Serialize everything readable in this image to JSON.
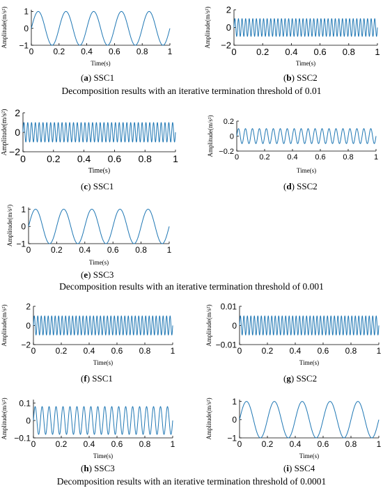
{
  "sections": [
    "Decomposition results with an iterative termination threshold of 0.01",
    "Decomposition results with an iterative termination threshold of 0.001",
    "Decomposition results with an iterative termination threshold of 0.0001"
  ],
  "chart_data": [
    {
      "id": "a",
      "type": "line",
      "caption_letter": "a",
      "caption_text": "SSC1",
      "xlabel": "Time(s)",
      "ylabel": "Amplitude(m/s²)",
      "xlim": [
        0,
        1
      ],
      "ylim": [
        -1,
        1.1
      ],
      "xticks": [
        "0",
        "0.2",
        "0.4",
        "0.6",
        "0.8",
        "1"
      ],
      "yticks": [
        "-1",
        "0",
        "1"
      ],
      "series": [
        {
          "amplitude": 1,
          "frequency_hz": 5,
          "phase": 0
        }
      ],
      "color": "#1f77b4"
    },
    {
      "id": "b",
      "type": "line",
      "caption_letter": "b",
      "caption_text": "SSC2",
      "xlabel": "Time(s)",
      "ylabel": "Amplitude(m/s²)",
      "xlim": [
        0,
        1
      ],
      "ylim": [
        -2,
        2
      ],
      "xticks": [
        "0",
        "0.2",
        "0.4",
        "0.6",
        "0.8",
        "1"
      ],
      "yticks": [
        "-2",
        "0",
        "2"
      ],
      "series": [
        {
          "amplitude": 1,
          "frequency_hz": 40,
          "phase": 0
        }
      ],
      "color": "#1f77b4"
    },
    {
      "id": "c",
      "type": "line",
      "caption_letter": "c",
      "caption_text": "SSC1",
      "xlabel": "Time(s)",
      "ylabel": "Amplitude(m/s²)",
      "xlim": [
        0,
        1
      ],
      "ylim": [
        -2,
        2
      ],
      "xticks": [
        "0",
        "0.2",
        "0.4",
        "0.6",
        "0.8",
        "1"
      ],
      "yticks": [
        "-2",
        "0",
        "2"
      ],
      "series": [
        {
          "amplitude": 1,
          "frequency_hz": 40,
          "phase": 0
        }
      ],
      "color": "#1f77b4"
    },
    {
      "id": "d",
      "type": "line",
      "caption_letter": "d",
      "caption_text": "SSC2",
      "xlabel": "Time(s)",
      "ylabel": "Amplitude(m/s²)",
      "xlim": [
        0,
        1
      ],
      "ylim": [
        -0.2,
        0.2
      ],
      "xticks": [
        "0",
        "0.2",
        "0.4",
        "0.6",
        "0.8",
        "1"
      ],
      "yticks": [
        "-0.2",
        "0",
        "0.2"
      ],
      "series": [
        {
          "amplitude": 0.1,
          "frequency_hz": 20,
          "phase": 0
        }
      ],
      "color": "#1f77b4"
    },
    {
      "id": "e",
      "type": "line",
      "caption_letter": "e",
      "caption_text": "SSC3",
      "xlabel": "Time(s)",
      "ylabel": "Amplitude(m/s²)",
      "xlim": [
        0,
        1
      ],
      "ylim": [
        -1,
        1.1
      ],
      "xticks": [
        "0",
        "0.2",
        "0.4",
        "0.6",
        "0.8",
        "1"
      ],
      "yticks": [
        "-1",
        "0",
        "1"
      ],
      "series": [
        {
          "amplitude": 1,
          "frequency_hz": 5,
          "phase": 0
        }
      ],
      "color": "#1f77b4"
    },
    {
      "id": "f",
      "type": "line",
      "caption_letter": "f",
      "caption_text": "SSC1",
      "xlabel": "Time(s)",
      "ylabel": "Amplitude(m/s²)",
      "xlim": [
        0,
        1
      ],
      "ylim": [
        -2,
        2
      ],
      "xticks": [
        "0",
        "0.2",
        "0.4",
        "0.6",
        "0.8",
        "1"
      ],
      "yticks": [
        "-2",
        "0",
        "2"
      ],
      "series": [
        {
          "amplitude": 1,
          "frequency_hz": 40,
          "phase": 0
        }
      ],
      "color": "#1f77b4"
    },
    {
      "id": "g",
      "type": "line",
      "caption_letter": "g",
      "caption_text": "SSC2",
      "xlabel": "Time(s)",
      "ylabel": "Amplitude(m/s²)",
      "xlim": [
        0,
        1
      ],
      "ylim": [
        -0.01,
        0.01
      ],
      "xticks": [
        "0",
        "0.2",
        "0.4",
        "0.6",
        "0.8",
        "1"
      ],
      "yticks": [
        "-0.01",
        "0",
        "0.01"
      ],
      "series": [
        {
          "amplitude": 0.005,
          "frequency_hz": 40,
          "phase": 0
        }
      ],
      "color": "#1f77b4"
    },
    {
      "id": "h",
      "type": "line",
      "caption_letter": "h",
      "caption_text": "SSC3",
      "xlabel": "Time(s)",
      "ylabel": "Amplitude(m/s²)",
      "xlim": [
        0,
        1
      ],
      "ylim": [
        -0.1,
        0.12
      ],
      "xticks": [
        "0",
        "0.2",
        "0.4",
        "0.6",
        "0.8",
        "1"
      ],
      "yticks": [
        "-0.1",
        "0",
        "0.1"
      ],
      "series": [
        {
          "amplitude": 0.08,
          "frequency_hz": 20,
          "phase": 0
        }
      ],
      "color": "#1f77b4"
    },
    {
      "id": "i",
      "type": "line",
      "caption_letter": "i",
      "caption_text": "SSC4",
      "xlabel": "Time(s)",
      "ylabel": "Amplitude(m/s²)",
      "xlim": [
        0,
        1
      ],
      "ylim": [
        -1,
        1.1
      ],
      "xticks": [
        "0",
        "0.2",
        "0.4",
        "0.6",
        "0.8",
        "1"
      ],
      "yticks": [
        "-1",
        "0",
        "1"
      ],
      "series": [
        {
          "amplitude": 1,
          "frequency_hz": 5,
          "phase": 0
        }
      ],
      "color": "#1f77b4"
    }
  ]
}
